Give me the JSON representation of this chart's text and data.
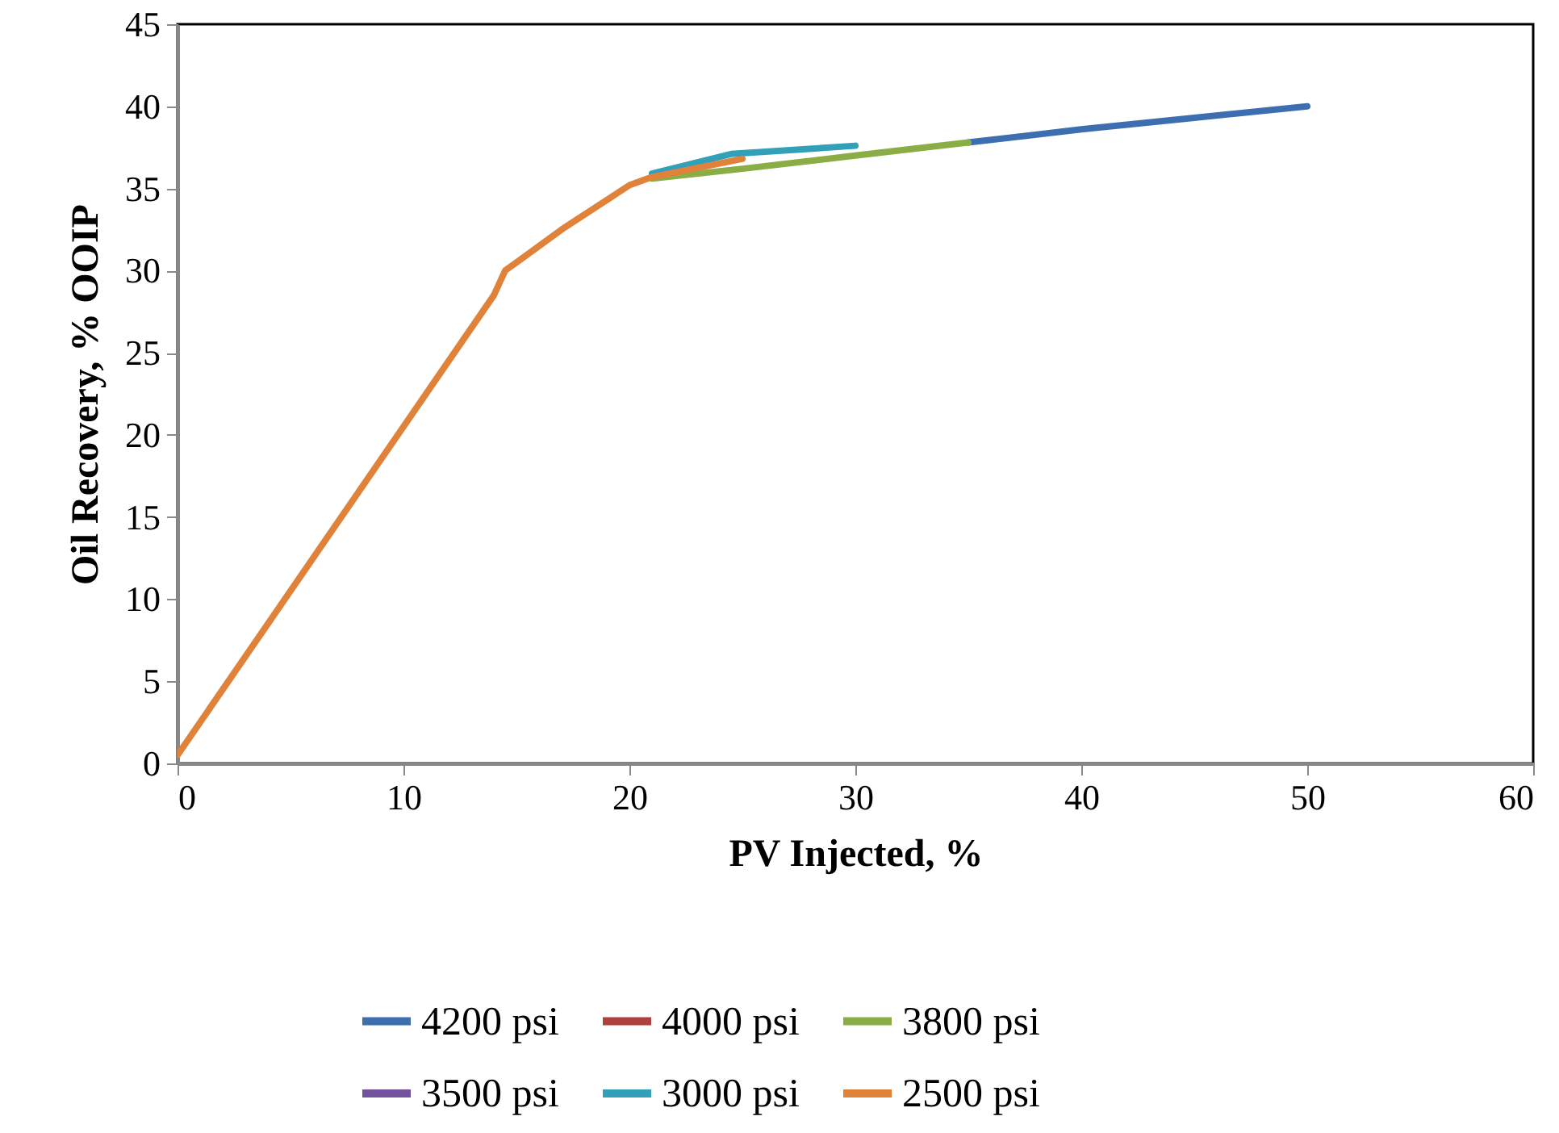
{
  "chart_data": {
    "type": "line",
    "xlabel": "PV Injected, %",
    "ylabel": "Oil Recovery, % OOIP",
    "xlim": [
      0,
      60
    ],
    "ylim": [
      0,
      45
    ],
    "xticks": [
      0,
      10,
      20,
      30,
      40,
      50,
      60
    ],
    "yticks": [
      0,
      5,
      10,
      15,
      20,
      25,
      30,
      35,
      40,
      45
    ],
    "grid": false,
    "legend": "bottom",
    "line_style": "solid",
    "series": [
      {
        "name": "4200 psi",
        "color": "#3d6fb0",
        "x": [
          35,
          40,
          45,
          50
        ],
        "values": [
          37.8,
          38.6,
          39.3,
          40
        ]
      },
      {
        "name": "4000 psi",
        "color": "#b0403c"
      },
      {
        "name": "3800 psi",
        "color": "#8aae45",
        "x": [
          21,
          25,
          30,
          35
        ],
        "values": [
          35.6,
          36.2,
          37,
          37.8
        ]
      },
      {
        "name": "3500 psi",
        "color": "#7352a0"
      },
      {
        "name": "3000 psi",
        "color": "#31a0b8",
        "x": [
          21,
          24.5,
          30
        ],
        "values": [
          35.9,
          37.1,
          37.6
        ]
      },
      {
        "name": "2500 psi",
        "color": "#e0823a",
        "x": [
          0,
          14,
          14.5,
          15,
          17,
          19,
          20,
          21,
          25
        ],
        "values": [
          0.5,
          28.5,
          30,
          30.5,
          32.5,
          34.3,
          35.2,
          35.7,
          36.8
        ]
      }
    ]
  }
}
